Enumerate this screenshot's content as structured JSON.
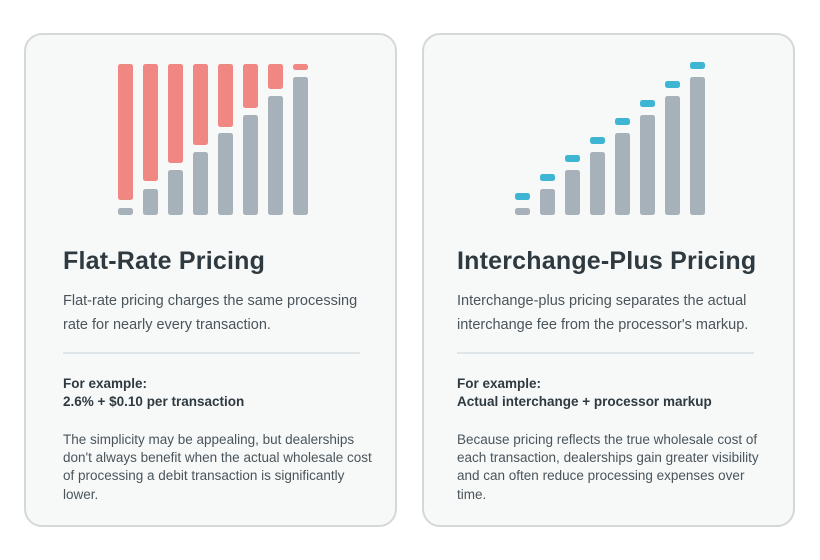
{
  "colors": {
    "bar_gray": "#a7b1b9",
    "bar_red": "#f08783",
    "bar_blue": "#3eb6d3"
  },
  "cards": [
    {
      "id": "flat-rate",
      "title": "Flat-Rate Pricing",
      "description": "Flat-rate pricing charges the same processing rate for nearly every  transaction.",
      "example_label": "For example:",
      "example_value": "2.6% + $0.10 per transaction",
      "body": "The simplicity may be appealing, but  dealerships don't always benefit when the  actual wholesale cost of processing a  debit transaction is significantly lower.",
      "illustration_icon": "flat-rate-bars-icon"
    },
    {
      "id": "interchange-plus",
      "title": "Interchange-Plus Pricing",
      "description": "Interchange-plus pricing separates the actual interchange fee from the processor's markup.",
      "example_label": "For example:",
      "example_value": "Actual interchange + processor markup",
      "body": "Because pricing reflects the true wholesale cost of each transaction, dealerships gain greater visibility and can often reduce processing expenses over time.",
      "illustration_icon": "interchange-plus-bars-icon"
    }
  ]
}
